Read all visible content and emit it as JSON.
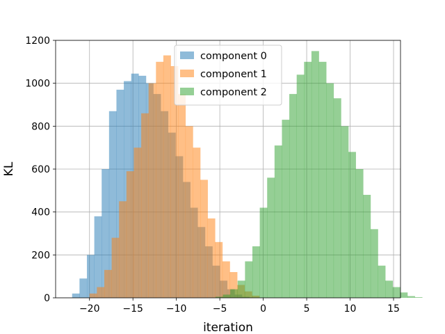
{
  "chart_data": {
    "type": "histogram",
    "xlabel": "iteration",
    "ylabel": "KL",
    "xlim": [
      -23.9,
      15.8
    ],
    "ylim": [
      0,
      1200
    ],
    "xticks": [
      -20,
      -15,
      -10,
      -5,
      0,
      5,
      10,
      15
    ],
    "xtick_labels": [
      "−20",
      "−15",
      "−10",
      "−5",
      "0",
      "5",
      "10",
      "15"
    ],
    "yticks": [
      0,
      200,
      400,
      600,
      800,
      1000,
      1200
    ],
    "ytick_labels": [
      "0",
      "200",
      "400",
      "600",
      "800",
      "1000",
      "1200"
    ],
    "grid": true,
    "legend_position": "upper-center",
    "alpha": 0.5,
    "series": [
      {
        "name": "component 0",
        "color": "#1f77b4",
        "bin_start": -22.0,
        "bin_width": 0.85,
        "counts": [
          20,
          90,
          200,
          380,
          600,
          870,
          970,
          1010,
          1045,
          1035,
          1000,
          950,
          870,
          770,
          660,
          540,
          420,
          330,
          240,
          150,
          80,
          40,
          15,
          5
        ]
      },
      {
        "name": "component 1",
        "color": "#ff7f0e",
        "bin_start": -20.0,
        "bin_width": 0.85,
        "counts": [
          20,
          50,
          130,
          280,
          450,
          590,
          700,
          860,
          1000,
          1100,
          1130,
          1080,
          950,
          800,
          700,
          550,
          370,
          260,
          170,
          120,
          60,
          30,
          10
        ]
      },
      {
        "name": "component 2",
        "color": "#2ca02c",
        "bin_start": -5.5,
        "bin_width": 0.85,
        "counts": [
          5,
          15,
          40,
          80,
          170,
          240,
          420,
          560,
          710,
          830,
          950,
          1040,
          1100,
          1150,
          1100,
          1000,
          930,
          800,
          680,
          600,
          480,
          320,
          150,
          80,
          50,
          25,
          8,
          3
        ]
      }
    ]
  }
}
